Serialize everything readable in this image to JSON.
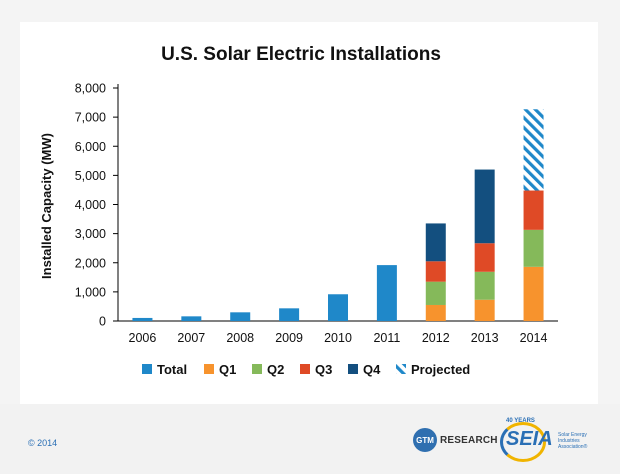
{
  "colors": {
    "total": "#1f88c9",
    "q1": "#f7932d",
    "q2": "#85b95a",
    "q3": "#df4a26",
    "q4": "#134f7f",
    "projected": "#1f88c9",
    "axis": "#000000",
    "gridline": "#d9d9d9"
  },
  "chart_data": {
    "type": "bar",
    "stacked": true,
    "title": "U.S. Solar Electric Installations",
    "xlabel": "",
    "ylabel": "Installed Capacity (MW)",
    "ylim": [
      0,
      8000
    ],
    "yticks": [
      0,
      1000,
      2000,
      3000,
      4000,
      5000,
      6000,
      7000,
      8000
    ],
    "ytick_labels": [
      "0",
      "1,000",
      "2,000",
      "3,000",
      "4,000",
      "5,000",
      "6,000",
      "7,000",
      "8,000"
    ],
    "categories": [
      "2006",
      "2007",
      "2008",
      "2009",
      "2010",
      "2011",
      "2012",
      "2013",
      "2014"
    ],
    "legend_position": "bottom",
    "series": [
      {
        "name": "Total",
        "color_key": "total",
        "values": [
          105,
          160,
          298,
          435,
          918,
          1919,
          0,
          0,
          0
        ]
      },
      {
        "name": "Q1",
        "color_key": "q1",
        "values": [
          0,
          0,
          0,
          0,
          0,
          0,
          550,
          730,
          1860
        ]
      },
      {
        "name": "Q2",
        "color_key": "q2",
        "values": [
          0,
          0,
          0,
          0,
          0,
          0,
          800,
          960,
          1270
        ]
      },
      {
        "name": "Q3",
        "color_key": "q3",
        "values": [
          0,
          0,
          0,
          0,
          0,
          0,
          700,
          980,
          1350
        ]
      },
      {
        "name": "Q4",
        "color_key": "q4",
        "values": [
          0,
          0,
          0,
          0,
          0,
          0,
          1300,
          2530,
          0
        ]
      },
      {
        "name": "Projected",
        "color_key": "projected",
        "pattern": "hatch",
        "values": [
          0,
          0,
          0,
          0,
          0,
          0,
          0,
          0,
          2790
        ]
      }
    ]
  },
  "footer": {
    "copyright": "© 2014",
    "gtm_mark": "GTM",
    "gtm_label": "RESEARCH",
    "seia_years": "40 YEARS",
    "seia_label": "SEIA",
    "seia_subtitle_1": "Solar Energy",
    "seia_subtitle_2": "Industries",
    "seia_subtitle_3": "Association®"
  }
}
